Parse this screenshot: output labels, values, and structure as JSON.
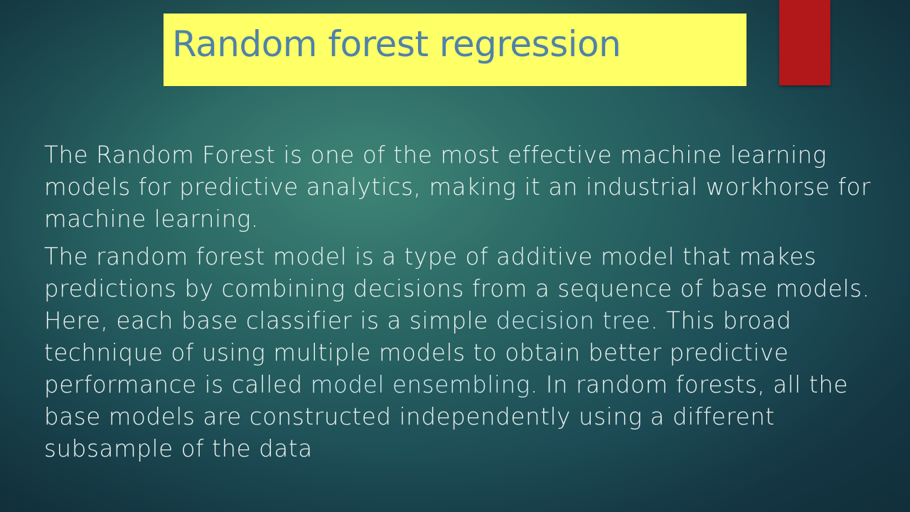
{
  "slide": {
    "title": "Random forest regression",
    "colors": {
      "title_background": "#ffff66",
      "title_text": "#4f82a8",
      "accent_bar": "#b2171a",
      "body_text": "#ebf2f0",
      "highlighted_term": "#d6ebfa"
    },
    "paragraphs": [
      {
        "text": "The Random Forest is one of the most effective machine learning models for predictive analytics, making it an industrial workhorse for machine learning."
      },
      {
        "part1": "The random forest model is a type of additive model that makes predictions by combining decisions from a sequence of base models. Here, each base classifier is a simple ",
        "term1": "decision tree",
        "part2": ". This broad technique of using multiple models to obtain better predictive performance is called ",
        "term2": "model ensembling",
        "part3": ". In random forests, all the base models are constructed independently using a different subsample of the data"
      }
    ]
  }
}
